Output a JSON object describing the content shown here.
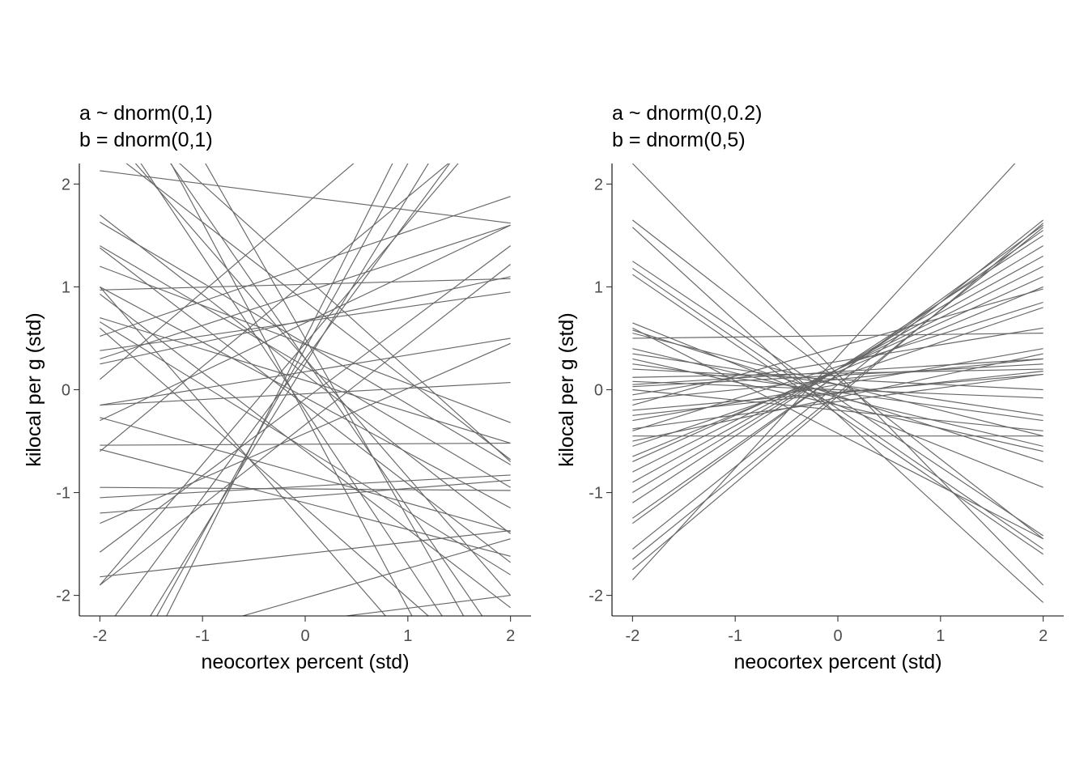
{
  "chart_data": [
    {
      "type": "line",
      "title_lines": [
        "a ~ dnorm(0,1)",
        "b = dnorm(0,1)"
      ],
      "xlabel": "neocortex percent (std)",
      "ylabel": "kilocal per g (std)",
      "xlim": [
        -2.2,
        2.2
      ],
      "ylim": [
        -2.2,
        2.2
      ],
      "xticks": [
        -2,
        -1,
        0,
        1,
        2
      ],
      "xtick_labels": [
        "-2",
        "-1",
        "0",
        "1",
        "2"
      ],
      "yticks": [
        -2,
        -1,
        0,
        1,
        2
      ],
      "ytick_labels": [
        "-2",
        "-1",
        "0",
        "1",
        "2"
      ],
      "grid": false,
      "line_color": "#666666",
      "lines": [
        {
          "x": [
            -2,
            2
          ],
          "y": [
            2.13,
            1.62
          ]
        },
        {
          "x": [
            -2,
            2
          ],
          "y": [
            1.7,
            -1.4
          ]
        },
        {
          "x": [
            -2,
            2
          ],
          "y": [
            1.63,
            -0.73
          ]
        },
        {
          "x": [
            -2,
            2
          ],
          "y": [
            1.38,
            -1.68
          ]
        },
        {
          "x": [
            -2,
            2
          ],
          "y": [
            1.2,
            -0.32
          ]
        },
        {
          "x": [
            -2,
            2
          ],
          "y": [
            1.0,
            -1.15
          ]
        },
        {
          "x": [
            -2,
            2
          ],
          "y": [
            0.97,
            1.08
          ]
        },
        {
          "x": [
            -2,
            2
          ],
          "y": [
            0.93,
            -2.12
          ]
        },
        {
          "x": [
            -2,
            2
          ],
          "y": [
            0.7,
            -0.52
          ]
        },
        {
          "x": [
            -2,
            2
          ],
          "y": [
            0.66,
            -1.8
          ]
        },
        {
          "x": [
            -2,
            2
          ],
          "y": [
            0.52,
            1.88
          ]
        },
        {
          "x": [
            -2,
            2
          ],
          "y": [
            0.38,
            0.95
          ]
        },
        {
          "x": [
            -2,
            2
          ],
          "y": [
            0.3,
            1.6
          ]
        },
        {
          "x": [
            -2,
            2
          ],
          "y": [
            0.25,
            1.1
          ]
        },
        {
          "x": [
            -2,
            2
          ],
          "y": [
            -0.15,
            0.07
          ]
        },
        {
          "x": [
            -2,
            2
          ],
          "y": [
            -0.15,
            0.5
          ]
        },
        {
          "x": [
            -2,
            2
          ],
          "y": [
            -0.27,
            -1.38
          ]
        },
        {
          "x": [
            -2,
            2
          ],
          "y": [
            -0.54,
            -0.52
          ]
        },
        {
          "x": [
            -2,
            2
          ],
          "y": [
            -0.58,
            -1.62
          ]
        },
        {
          "x": [
            -2,
            2
          ],
          "y": [
            -0.95,
            -0.98
          ]
        },
        {
          "x": [
            -2,
            2
          ],
          "y": [
            -1.05,
            -0.83
          ]
        },
        {
          "x": [
            -2,
            2
          ],
          "y": [
            -1.2,
            -0.88
          ]
        },
        {
          "x": [
            -2,
            2
          ],
          "y": [
            -1.3,
            0.45
          ]
        },
        {
          "x": [
            -2,
            2
          ],
          "y": [
            -1.58,
            1.4
          ]
        },
        {
          "x": [
            -2,
            2
          ],
          "y": [
            -1.82,
            -1.37
          ]
        },
        {
          "x": [
            -2,
            2
          ],
          "y": [
            -1.9,
            1.22
          ]
        },
        {
          "x": [
            -2,
            2
          ],
          "y": [
            -2.6,
            -1.45
          ]
        },
        {
          "x": [
            -2,
            2
          ],
          "y": [
            -2.5,
            -2.0
          ]
        },
        {
          "x": [
            -2,
            2
          ],
          "y": [
            2.9,
            -0.7
          ]
        },
        {
          "x": [
            -2,
            2
          ],
          "y": [
            2.6,
            -2.0
          ]
        },
        {
          "x": [
            -2,
            2
          ],
          "y": [
            2.4,
            -0.68
          ]
        },
        {
          "x": [
            -2,
            2
          ],
          "y": [
            -3.0,
            3.5
          ]
        },
        {
          "x": [
            -2,
            2
          ],
          "y": [
            -3.2,
            4.0
          ]
        },
        {
          "x": [
            -2,
            2
          ],
          "y": [
            -2.4,
            3.0
          ]
        },
        {
          "x": [
            -2,
            2
          ],
          "y": [
            -1.9,
            2.8
          ]
        },
        {
          "x": [
            -2,
            2
          ],
          "y": [
            -3.5,
            4.5
          ]
        },
        {
          "x": [
            -2,
            2
          ],
          "y": [
            -0.6,
            2.7
          ]
        },
        {
          "x": [
            -2,
            2
          ],
          "y": [
            0.1,
            3.5
          ]
        },
        {
          "x": [
            -2,
            2
          ],
          "y": [
            2.8,
            -3.2
          ]
        },
        {
          "x": [
            -2,
            2
          ],
          "y": [
            4.0,
            -3.0
          ]
        },
        {
          "x": [
            -2,
            2
          ],
          "y": [
            3.5,
            -4.0
          ]
        },
        {
          "x": [
            -2,
            2
          ],
          "y": [
            3.2,
            -2.6
          ]
        },
        {
          "x": [
            -2,
            2
          ],
          "y": [
            1.0,
            -3.6
          ]
        },
        {
          "x": [
            -2,
            2
          ],
          "y": [
            0.6,
            -2.9
          ]
        },
        {
          "x": [
            -2,
            2
          ],
          "y": [
            -0.3,
            1.6
          ]
        },
        {
          "x": [
            -2,
            2
          ],
          "y": [
            1.4,
            -0.95
          ]
        }
      ]
    },
    {
      "type": "line",
      "title_lines": [
        "a ~ dnorm(0,0.2)",
        "b = dnorm(0,5)"
      ],
      "xlabel": "neocortex percent (std)",
      "ylabel": "kilocal per g (std)",
      "xlim": [
        -2.2,
        2.2
      ],
      "ylim": [
        -2.2,
        2.2
      ],
      "xticks": [
        -2,
        -1,
        0,
        1,
        2
      ],
      "xtick_labels": [
        "-2",
        "-1",
        "0",
        "1",
        "2"
      ],
      "yticks": [
        -2,
        -1,
        0,
        1,
        2
      ],
      "ytick_labels": [
        "-2",
        "-1",
        "0",
        "1",
        "2"
      ],
      "grid": false,
      "line_color": "#666666",
      "lines": [
        {
          "x": [
            -2,
            2
          ],
          "y": [
            2.2,
            -1.9
          ]
        },
        {
          "x": [
            -2,
            2
          ],
          "y": [
            1.65,
            -1.45
          ]
        },
        {
          "x": [
            -2,
            2
          ],
          "y": [
            1.58,
            -2.07
          ]
        },
        {
          "x": [
            -2,
            2
          ],
          "y": [
            1.25,
            -1.42
          ]
        },
        {
          "x": [
            -2,
            2
          ],
          "y": [
            1.18,
            -1.55
          ]
        },
        {
          "x": [
            -2,
            2
          ],
          "y": [
            1.12,
            -1.6
          ]
        },
        {
          "x": [
            -2,
            2
          ],
          "y": [
            0.65,
            -0.95
          ]
        },
        {
          "x": [
            -2,
            2
          ],
          "y": [
            0.58,
            -0.7
          ]
        },
        {
          "x": [
            -2,
            2
          ],
          "y": [
            0.55,
            -0.45
          ]
        },
        {
          "x": [
            -2,
            2
          ],
          "y": [
            0.5,
            0.55
          ]
        },
        {
          "x": [
            -2,
            2
          ],
          "y": [
            0.4,
            -0.55
          ]
        },
        {
          "x": [
            -2,
            2
          ],
          "y": [
            0.3,
            -0.6
          ]
        },
        {
          "x": [
            -2,
            2
          ],
          "y": [
            0.2,
            0.0
          ]
        },
        {
          "x": [
            -2,
            2
          ],
          "y": [
            0.12,
            0.2
          ]
        },
        {
          "x": [
            -2,
            2
          ],
          "y": [
            0.08,
            -0.08
          ]
        },
        {
          "x": [
            -2,
            2
          ],
          "y": [
            0.03,
            0.25
          ]
        },
        {
          "x": [
            -2,
            2
          ],
          "y": [
            0.0,
            -0.4
          ]
        },
        {
          "x": [
            -2,
            2
          ],
          "y": [
            -0.05,
            0.6
          ]
        },
        {
          "x": [
            -2,
            2
          ],
          "y": [
            -0.1,
            0.3
          ]
        },
        {
          "x": [
            -2,
            2
          ],
          "y": [
            -0.2,
            0.15
          ]
        },
        {
          "x": [
            -2,
            2
          ],
          "y": [
            -0.3,
            0.4
          ]
        },
        {
          "x": [
            -2,
            2
          ],
          "y": [
            -0.4,
            0.85
          ]
        },
        {
          "x": [
            -2,
            2
          ],
          "y": [
            -0.45,
            -0.45
          ]
        },
        {
          "x": [
            -2,
            2
          ],
          "y": [
            -0.5,
            0.35
          ]
        },
        {
          "x": [
            -2,
            2
          ],
          "y": [
            -0.55,
            0.8
          ]
        },
        {
          "x": [
            -2,
            2
          ],
          "y": [
            -0.65,
            1.0
          ]
        },
        {
          "x": [
            -2,
            2
          ],
          "y": [
            -0.7,
            1.1
          ]
        },
        {
          "x": [
            -2,
            2
          ],
          "y": [
            -0.8,
            1.2
          ]
        },
        {
          "x": [
            -2,
            2
          ],
          "y": [
            -0.9,
            1.3
          ]
        },
        {
          "x": [
            -2,
            2
          ],
          "y": [
            -1.0,
            1.4
          ]
        },
        {
          "x": [
            -2,
            2
          ],
          "y": [
            -1.1,
            1.5
          ]
        },
        {
          "x": [
            -2,
            2
          ],
          "y": [
            -1.25,
            1.55
          ]
        },
        {
          "x": [
            -2,
            2
          ],
          "y": [
            -1.3,
            1.6
          ]
        },
        {
          "x": [
            -2,
            2
          ],
          "y": [
            -1.55,
            1.65
          ]
        },
        {
          "x": [
            -2,
            2
          ],
          "y": [
            -1.65,
            1.58
          ]
        },
        {
          "x": [
            -2,
            2
          ],
          "y": [
            -1.75,
            1.62
          ]
        },
        {
          "x": [
            -2,
            2
          ],
          "y": [
            -1.85,
            2.5
          ]
        },
        {
          "x": [
            -2,
            2
          ],
          "y": [
            -0.25,
            0.18
          ]
        },
        {
          "x": [
            -2,
            2
          ],
          "y": [
            0.25,
            -0.3
          ]
        },
        {
          "x": [
            -2,
            2
          ],
          "y": [
            0.05,
            0.3
          ]
        },
        {
          "x": [
            -2,
            2
          ],
          "y": [
            -0.15,
            0.98
          ]
        },
        {
          "x": [
            -2,
            2
          ],
          "y": [
            0.6,
            -1.45
          ]
        },
        {
          "x": [
            -2,
            2
          ],
          "y": [
            -0.38,
            0.15
          ]
        },
        {
          "x": [
            -2,
            2
          ],
          "y": [
            0.35,
            -0.25
          ]
        }
      ]
    }
  ]
}
